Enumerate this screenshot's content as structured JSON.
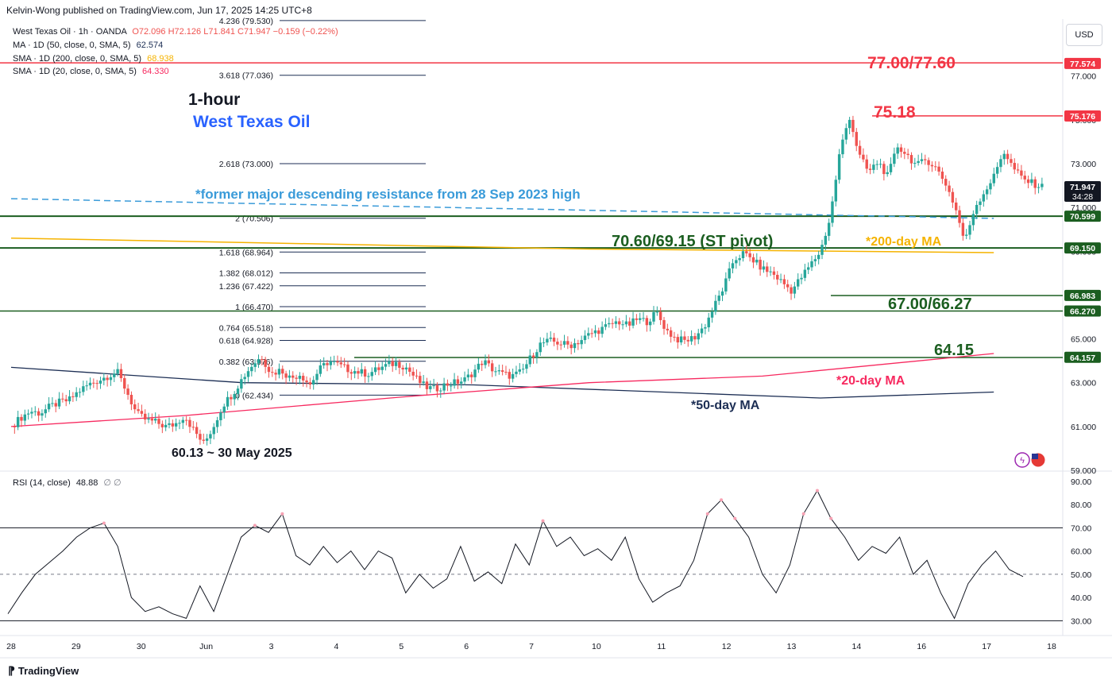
{
  "header": {
    "published": "Kelvin-Wong published on TradingView.com, Jun 17, 2025 14:25 UTC+8"
  },
  "legend": {
    "symbol": "West Texas Oil · 1h · OANDA",
    "ohlc": "O72.096 H72.126 L71.841 C71.947 −0.159 (−0.22%)",
    "ma50": "MA · 1D (50, close, 0, SMA, 5)",
    "ma50_val": "62.574",
    "ma200": "SMA · 1D (200, close, 0, SMA, 5)",
    "ma200_val": "68.938",
    "ma20": "SMA · 1D (20, close, 0, SMA, 5)",
    "ma20_val": "64.330",
    "rsi": "RSI (14, close)",
    "rsi_val": "48.88",
    "rsi_extra": "∅ ∅"
  },
  "currency_button": "USD",
  "footer_brand": "TradingView",
  "colors": {
    "up": "#26a69a",
    "down": "#ef5350",
    "resistance": "#f23645",
    "support": "#1b5e20",
    "ma20": "#f7295f",
    "ma50": "#1c2e54",
    "ma200": "#f5b300",
    "trend": "#3a9bd9",
    "rsi": "#131722"
  },
  "chart_data": {
    "type": "candlestick",
    "title": "1-hour",
    "subtitle": "West Texas Oil",
    "x_tick_labels": [
      "28",
      "29",
      "30",
      "Jun",
      "3",
      "4",
      "5",
      "6",
      "7",
      "10",
      "11",
      "12",
      "13",
      "14",
      "16",
      "17",
      "18"
    ],
    "y_tick_labels": [
      "77.000",
      "75.000",
      "73.000",
      "71.000",
      "69.000",
      "67.000",
      "65.000",
      "63.000",
      "61.000",
      "59.000"
    ],
    "ylim": [
      59,
      79.6
    ],
    "price_series": [
      {
        "day": 28,
        "v": [
          61.0,
          61.4,
          61.7,
          61.6,
          61.9,
          62.1
        ]
      },
      {
        "day": 29,
        "v": [
          62.2,
          62.6,
          62.9,
          63.1,
          63.3,
          63.5
        ]
      },
      {
        "day": 30,
        "v": [
          62.6,
          61.6,
          61.3,
          61.2,
          61.0,
          61.1
        ]
      },
      {
        "day": 31,
        "v": [
          61.5,
          60.8,
          60.2,
          61.0,
          62.0,
          62.5
        ]
      },
      {
        "day": 32,
        "v": [
          63.2,
          63.8,
          64.2,
          63.4,
          63.6,
          63.2
        ]
      },
      {
        "day": 33,
        "v": [
          63.4,
          62.9,
          63.6,
          64.0,
          63.8,
          63.6
        ]
      },
      {
        "day": 34,
        "v": [
          63.5,
          63.4,
          63.6,
          63.8,
          63.9,
          63.7
        ]
      },
      {
        "day": 35,
        "v": [
          63.2,
          62.8,
          62.7,
          62.9,
          63.0,
          63.1
        ]
      },
      {
        "day": 36,
        "v": [
          63.5,
          64.0,
          63.6,
          63.4,
          63.3,
          63.5
        ]
      },
      {
        "day": 37,
        "v": [
          64.2,
          64.8,
          64.9,
          64.8,
          64.7,
          64.9
        ]
      },
      {
        "day": 38,
        "v": [
          65.2,
          65.4,
          65.6,
          65.8,
          65.6,
          65.9
        ]
      },
      {
        "day": 39,
        "v": [
          65.8,
          66.2,
          65.4,
          65.0,
          64.9,
          65.1
        ]
      },
      {
        "day": 40,
        "v": [
          65.6,
          66.5,
          67.4,
          68.6,
          68.9,
          68.6
        ]
      },
      {
        "day": 41,
        "v": [
          68.2,
          68.0,
          67.6,
          67.2,
          67.8,
          68.4
        ]
      },
      {
        "day": 42,
        "v": [
          69.0,
          70.5,
          73.5,
          75.18,
          73.4,
          72.6
        ]
      },
      {
        "day": 43,
        "v": [
          73.1,
          72.4,
          73.8,
          73.4,
          72.9,
          73.2
        ]
      },
      {
        "day": 44,
        "v": [
          72.8,
          72.1,
          71.0,
          69.4,
          71.0,
          71.7
        ]
      },
      {
        "day": 45,
        "v": [
          72.4,
          73.6,
          72.8,
          72.3,
          72.1,
          71.947
        ]
      }
    ],
    "annotations": {
      "r1": "77.00/77.60",
      "r2": "75.18",
      "pivot": "70.60/69.15 (ST pivot)",
      "s1": "67.00/66.27",
      "s2": "64.15",
      "ma200_label": "*200-day MA",
      "ma20_label": "*20-day MA",
      "ma50_label": "*50-day MA",
      "trend_label": "*former major descending resistance from 28 Sep 2023 high",
      "low_label": "60.13 ~ 30 May 2025"
    },
    "horizontal_levels": [
      77.6,
      75.18,
      70.6,
      69.15,
      66.98,
      66.27,
      64.15
    ],
    "fib_levels": [
      {
        "label": "4.236 (79.530)",
        "price": 79.53
      },
      {
        "label": "3.618 (77.036)",
        "price": 77.036
      },
      {
        "label": "2.618 (73.000)",
        "price": 73.0
      },
      {
        "label": "2 (70.506)",
        "price": 70.506
      },
      {
        "label": "1.618 (68.964)",
        "price": 68.964
      },
      {
        "label": "1.382 (68.012)",
        "price": 68.012
      },
      {
        "label": "1.236 (67.422)",
        "price": 67.422
      },
      {
        "label": "1 (66.470)",
        "price": 66.47
      },
      {
        "label": "0.764 (65.518)",
        "price": 65.518
      },
      {
        "label": "0.618 (64.928)",
        "price": 64.928
      },
      {
        "label": "0.382 (63.976)",
        "price": 63.976
      },
      {
        "label": "0 (62.434)",
        "price": 62.434
      }
    ],
    "ma20": [
      [
        28,
        61.0
      ],
      [
        31,
        61.5
      ],
      [
        35,
        62.4
      ],
      [
        38,
        63.0
      ],
      [
        41,
        63.3
      ],
      [
        45,
        64.33
      ]
    ],
    "ma50": [
      [
        28,
        63.7
      ],
      [
        32,
        63.0
      ],
      [
        36,
        62.9
      ],
      [
        40,
        62.5
      ],
      [
        42,
        62.3
      ],
      [
        45,
        62.574
      ]
    ],
    "ma200": [
      [
        28,
        69.6
      ],
      [
        34,
        69.3
      ],
      [
        38,
        69.1
      ],
      [
        45,
        68.938
      ]
    ],
    "trendline": [
      [
        28,
        71.4
      ],
      [
        45,
        70.5
      ]
    ],
    "price_tags": [
      {
        "label": "77.574",
        "price": 77.574,
        "color": "#f23645"
      },
      {
        "label": "75.176",
        "price": 75.176,
        "color": "#f23645"
      },
      {
        "label": "71.947",
        "price": 71.947,
        "color": "#131722",
        "sub": "34:28"
      },
      {
        "label": "70.599",
        "price": 70.599,
        "color": "#1b5e20"
      },
      {
        "label": "69.150",
        "price": 69.15,
        "color": "#1b5e20"
      },
      {
        "label": "66.983",
        "price": 66.983,
        "color": "#1b5e20"
      },
      {
        "label": "66.270",
        "price": 66.27,
        "color": "#1b5e20"
      },
      {
        "label": "64.157",
        "price": 64.157,
        "color": "#1b5e20"
      }
    ],
    "rsi": {
      "ylim": [
        25,
        92
      ],
      "tick_labels": [
        "90.00",
        "80.00",
        "70.00",
        "60.00",
        "50.00",
        "40.00",
        "30.00"
      ],
      "levels": [
        70,
        50,
        30
      ],
      "values": [
        33,
        42,
        50,
        55,
        60,
        66,
        70,
        72,
        62,
        40,
        34,
        36,
        33,
        31,
        45,
        34,
        50,
        66,
        71,
        68,
        76,
        58,
        54,
        62,
        55,
        60,
        52,
        60,
        57,
        42,
        50,
        44,
        48,
        62,
        47,
        51,
        46,
        63,
        54,
        73,
        62,
        66,
        58,
        61,
        56,
        66,
        48,
        38,
        42,
        45,
        56,
        76,
        82,
        74,
        66,
        50,
        42,
        54,
        76,
        86,
        74,
        66,
        56,
        62,
        59,
        66,
        50,
        56,
        42,
        31,
        46,
        54,
        60,
        52,
        49
      ]
    }
  }
}
